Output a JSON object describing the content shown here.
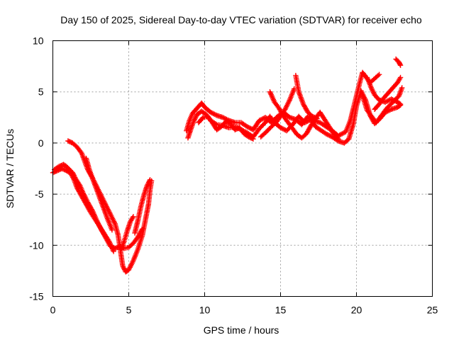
{
  "chart_data": {
    "type": "scatter",
    "title": "Day 150 of 2025, Sidereal Day-to-day VTEC variation (SDTVAR) for receiver echo",
    "xlabel": "GPS time / hours",
    "ylabel": "SDTVAR / TECUs",
    "xlim": [
      0,
      25
    ],
    "ylim": [
      -15,
      10
    ],
    "xticks": [
      0,
      5,
      10,
      15,
      20,
      25
    ],
    "yticks": [
      -15,
      -10,
      -5,
      0,
      5,
      10
    ],
    "xtick_labels": [
      "0",
      "5",
      "10",
      "15",
      "20",
      "25"
    ],
    "ytick_labels": [
      "-15",
      "-10",
      "-5",
      "0",
      "5",
      "10"
    ],
    "grid": true,
    "marker": "+",
    "series": [
      {
        "name": "SDTVAR",
        "color": "#ff0000",
        "tracks": [
          [
            [
              0.1,
              -2.6
            ],
            [
              0.4,
              -2.3
            ],
            [
              0.7,
              -2.1
            ],
            [
              0.9,
              -2.3
            ],
            [
              1.1,
              -2.6
            ],
            [
              1.3,
              -2.9
            ],
            [
              1.5,
              -3.5
            ],
            [
              1.8,
              -4.2
            ],
            [
              2.0,
              -4.9
            ],
            [
              2.3,
              -5.8
            ],
            [
              2.6,
              -6.6
            ],
            [
              2.9,
              -7.6
            ],
            [
              3.2,
              -8.5
            ],
            [
              3.5,
              -9.3
            ],
            [
              3.8,
              -10.1
            ],
            [
              4.1,
              -10.3
            ],
            [
              4.4,
              -10.1
            ],
            [
              4.7,
              -10.3
            ],
            [
              5.0,
              -10.2
            ],
            [
              5.3,
              -9.8
            ],
            [
              5.6,
              -9.2
            ],
            [
              5.9,
              -8.4
            ]
          ],
          [
            [
              0.0,
              -2.9
            ],
            [
              0.3,
              -2.7
            ],
            [
              0.6,
              -2.5
            ],
            [
              0.9,
              -2.7
            ],
            [
              1.2,
              -3.0
            ],
            [
              1.4,
              -3.6
            ],
            [
              1.6,
              -4.4
            ],
            [
              1.9,
              -5.2
            ],
            [
              2.2,
              -6.0
            ],
            [
              2.5,
              -6.8
            ],
            [
              2.8,
              -7.5
            ],
            [
              3.1,
              -8.2
            ],
            [
              3.4,
              -8.9
            ],
            [
              3.7,
              -9.6
            ],
            [
              4.0,
              -10.6
            ]
          ],
          [
            [
              1.0,
              0.2
            ],
            [
              1.3,
              0.0
            ],
            [
              1.6,
              -0.4
            ],
            [
              1.9,
              -1.0
            ],
            [
              2.1,
              -1.8
            ],
            [
              2.3,
              -2.6
            ],
            [
              2.6,
              -3.4
            ],
            [
              2.9,
              -4.3
            ],
            [
              3.2,
              -5.2
            ],
            [
              3.5,
              -6.1
            ],
            [
              3.8,
              -7.0
            ],
            [
              4.1,
              -7.9
            ],
            [
              4.3,
              -9.0
            ],
            [
              4.4,
              -10.0
            ],
            [
              4.5,
              -11.0
            ],
            [
              4.6,
              -12.0
            ],
            [
              4.8,
              -12.6
            ],
            [
              5.0,
              -12.4
            ],
            [
              5.3,
              -11.5
            ],
            [
              5.6,
              -10.4
            ],
            [
              5.9,
              -9.0
            ],
            [
              6.1,
              -7.5
            ],
            [
              6.3,
              -6.0
            ],
            [
              6.4,
              -4.6
            ],
            [
              6.5,
              -3.7
            ]
          ],
          [
            [
              2.2,
              -1.5
            ],
            [
              2.4,
              -2.6
            ],
            [
              2.7,
              -3.8
            ],
            [
              3.0,
              -5.0
            ],
            [
              3.3,
              -6.2
            ],
            [
              3.6,
              -7.4
            ],
            [
              3.9,
              -8.5
            ]
          ],
          [
            [
              4.5,
              -10.4
            ],
            [
              4.7,
              -9.6
            ],
            [
              4.9,
              -8.6
            ],
            [
              5.1,
              -7.7
            ],
            [
              5.3,
              -7.2
            ]
          ],
          [
            [
              5.4,
              -8.8
            ],
            [
              5.6,
              -7.6
            ],
            [
              5.8,
              -6.2
            ],
            [
              6.0,
              -5.1
            ],
            [
              6.2,
              -4.2
            ],
            [
              6.4,
              -3.6
            ]
          ],
          [
            [
              8.9,
              0.5
            ],
            [
              9.1,
              1.4
            ],
            [
              9.3,
              2.2
            ],
            [
              9.5,
              2.8
            ],
            [
              9.8,
              3.1
            ],
            [
              10.1,
              2.8
            ],
            [
              10.4,
              2.2
            ],
            [
              10.8,
              1.8
            ],
            [
              11.2,
              1.7
            ],
            [
              11.6,
              1.5
            ],
            [
              12.0,
              1.6
            ],
            [
              12.4,
              1.3
            ],
            [
              12.8,
              1.0
            ],
            [
              13.2,
              0.6
            ],
            [
              13.6,
              1.4
            ],
            [
              14.0,
              2.0
            ],
            [
              14.3,
              2.6
            ],
            [
              14.6,
              2.0
            ],
            [
              15.0,
              1.5
            ],
            [
              15.4,
              1.2
            ],
            [
              15.8,
              1.8
            ],
            [
              16.2,
              2.6
            ],
            [
              16.6,
              2.0
            ],
            [
              17.0,
              2.3
            ],
            [
              17.3,
              1.6
            ],
            [
              17.6,
              1.3
            ],
            [
              18.0,
              0.9
            ],
            [
              18.4,
              0.6
            ],
            [
              18.8,
              0.2
            ],
            [
              19.2,
              0.0
            ],
            [
              19.5,
              0.4
            ],
            [
              19.8,
              1.9
            ],
            [
              20.0,
              3.6
            ],
            [
              20.3,
              5.1
            ],
            [
              20.6,
              4.2
            ],
            [
              20.9,
              2.7
            ],
            [
              21.2,
              1.9
            ],
            [
              21.5,
              2.3
            ],
            [
              21.9,
              3.0
            ],
            [
              22.3,
              3.3
            ],
            [
              22.7,
              3.5
            ],
            [
              22.9,
              3.7
            ]
          ],
          [
            [
              8.8,
              1.2
            ],
            [
              9.0,
              2.2
            ],
            [
              9.2,
              2.9
            ],
            [
              9.5,
              3.4
            ],
            [
              9.8,
              3.9
            ],
            [
              10.0,
              3.5
            ],
            [
              10.4,
              3.0
            ],
            [
              10.8,
              2.7
            ],
            [
              11.2,
              2.5
            ],
            [
              11.6,
              2.2
            ],
            [
              12.0,
              2.0
            ],
            [
              12.4,
              2.0
            ],
            [
              12.8,
              1.6
            ],
            [
              13.2,
              1.3
            ],
            [
              13.6,
              2.2
            ],
            [
              14.0,
              2.5
            ],
            [
              14.4,
              2.0
            ],
            [
              14.8,
              2.6
            ],
            [
              15.2,
              3.0
            ],
            [
              15.6,
              2.5
            ],
            [
              16.0,
              2.3
            ],
            [
              16.4,
              1.8
            ],
            [
              16.8,
              2.6
            ],
            [
              17.2,
              2.2
            ],
            [
              17.6,
              2.0
            ],
            [
              18.0,
              1.6
            ],
            [
              18.4,
              1.2
            ],
            [
              18.8,
              0.7
            ],
            [
              19.3,
              1.1
            ],
            [
              19.6,
              2.2
            ],
            [
              19.9,
              4.0
            ],
            [
              20.2,
              5.8
            ],
            [
              20.4,
              6.9
            ],
            [
              20.6,
              6.5
            ],
            [
              20.9,
              5.9
            ],
            [
              21.2,
              6.3
            ],
            [
              21.5,
              6.7
            ]
          ],
          [
            [
              9.6,
              2.0
            ],
            [
              9.9,
              2.5
            ],
            [
              10.2,
              2.6
            ],
            [
              10.5,
              2.0
            ],
            [
              10.8,
              1.3
            ],
            [
              11.1,
              1.6
            ],
            [
              11.4,
              2.1
            ],
            [
              11.7,
              1.9
            ],
            [
              12.0,
              1.3
            ],
            [
              12.3,
              1.5
            ],
            [
              12.6,
              0.9
            ],
            [
              12.9,
              0.6
            ],
            [
              13.2,
              0.4
            ]
          ],
          [
            [
              14.3,
              5.0
            ],
            [
              14.6,
              4.0
            ],
            [
              14.9,
              3.4
            ],
            [
              15.2,
              2.6
            ],
            [
              15.5,
              2.0
            ],
            [
              15.8,
              1.4
            ],
            [
              16.1,
              0.8
            ],
            [
              16.4,
              0.5
            ],
            [
              16.7,
              0.9
            ],
            [
              17.0,
              1.7
            ],
            [
              17.3,
              2.4
            ],
            [
              17.6,
              3.0
            ],
            [
              17.9,
              2.3
            ],
            [
              18.2,
              1.6
            ],
            [
              18.5,
              0.9
            ],
            [
              18.8,
              0.4
            ]
          ],
          [
            [
              16.0,
              6.6
            ],
            [
              16.2,
              5.0
            ],
            [
              16.5,
              3.8
            ],
            [
              16.8,
              3.0
            ],
            [
              17.1,
              2.6
            ],
            [
              17.4,
              2.4
            ]
          ],
          [
            [
              15.9,
              5.3
            ],
            [
              15.6,
              4.2
            ],
            [
              15.3,
              3.3
            ],
            [
              15.0,
              2.6
            ],
            [
              14.7,
              2.0
            ],
            [
              14.4,
              1.6
            ],
            [
              14.0,
              1.0
            ],
            [
              13.7,
              0.6
            ]
          ],
          [
            [
              20.4,
              4.6
            ],
            [
              20.7,
              3.2
            ],
            [
              21.0,
              2.6
            ],
            [
              21.3,
              2.0
            ],
            [
              21.6,
              2.6
            ],
            [
              22.0,
              3.4
            ],
            [
              22.4,
              4.0
            ],
            [
              22.8,
              4.6
            ],
            [
              23.0,
              5.4
            ]
          ],
          [
            [
              21.2,
              3.3
            ],
            [
              21.5,
              3.8
            ],
            [
              21.8,
              4.4
            ],
            [
              22.1,
              4.9
            ],
            [
              22.4,
              5.4
            ],
            [
              22.7,
              5.9
            ],
            [
              22.9,
              6.4
            ]
          ],
          [
            [
              20.7,
              6.4
            ],
            [
              21.0,
              5.3
            ],
            [
              21.2,
              4.7
            ],
            [
              21.5,
              4.2
            ],
            [
              21.9,
              4.0
            ],
            [
              22.3,
              4.3
            ],
            [
              22.7,
              4.0
            ],
            [
              22.9,
              3.8
            ]
          ],
          [
            [
              22.6,
              8.2
            ],
            [
              22.8,
              7.9
            ],
            [
              22.9,
              7.6
            ]
          ]
        ]
      }
    ]
  }
}
